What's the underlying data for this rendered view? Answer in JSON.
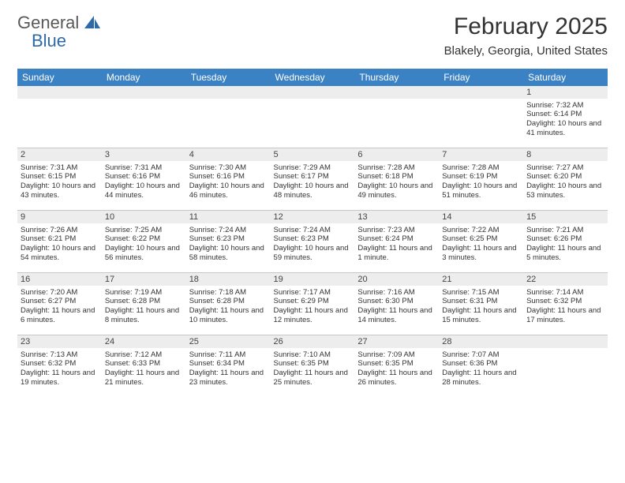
{
  "logo": {
    "word1": "General",
    "word2": "Blue",
    "sail_color": "#2f6aa8"
  },
  "title": "February 2025",
  "location": "Blakely, Georgia, United States",
  "colors": {
    "header_bg": "#3b82c4",
    "header_text": "#ffffff",
    "daynum_bg": "#ededed",
    "border": "#c7c7c7",
    "text": "#333333"
  },
  "day_headers": [
    "Sunday",
    "Monday",
    "Tuesday",
    "Wednesday",
    "Thursday",
    "Friday",
    "Saturday"
  ],
  "weeks": [
    [
      {
        "n": "",
        "sr": "",
        "ss": "",
        "dl": ""
      },
      {
        "n": "",
        "sr": "",
        "ss": "",
        "dl": ""
      },
      {
        "n": "",
        "sr": "",
        "ss": "",
        "dl": ""
      },
      {
        "n": "",
        "sr": "",
        "ss": "",
        "dl": ""
      },
      {
        "n": "",
        "sr": "",
        "ss": "",
        "dl": ""
      },
      {
        "n": "",
        "sr": "",
        "ss": "",
        "dl": ""
      },
      {
        "n": "1",
        "sr": "Sunrise: 7:32 AM",
        "ss": "Sunset: 6:14 PM",
        "dl": "Daylight: 10 hours and 41 minutes."
      }
    ],
    [
      {
        "n": "2",
        "sr": "Sunrise: 7:31 AM",
        "ss": "Sunset: 6:15 PM",
        "dl": "Daylight: 10 hours and 43 minutes."
      },
      {
        "n": "3",
        "sr": "Sunrise: 7:31 AM",
        "ss": "Sunset: 6:16 PM",
        "dl": "Daylight: 10 hours and 44 minutes."
      },
      {
        "n": "4",
        "sr": "Sunrise: 7:30 AM",
        "ss": "Sunset: 6:16 PM",
        "dl": "Daylight: 10 hours and 46 minutes."
      },
      {
        "n": "5",
        "sr": "Sunrise: 7:29 AM",
        "ss": "Sunset: 6:17 PM",
        "dl": "Daylight: 10 hours and 48 minutes."
      },
      {
        "n": "6",
        "sr": "Sunrise: 7:28 AM",
        "ss": "Sunset: 6:18 PM",
        "dl": "Daylight: 10 hours and 49 minutes."
      },
      {
        "n": "7",
        "sr": "Sunrise: 7:28 AM",
        "ss": "Sunset: 6:19 PM",
        "dl": "Daylight: 10 hours and 51 minutes."
      },
      {
        "n": "8",
        "sr": "Sunrise: 7:27 AM",
        "ss": "Sunset: 6:20 PM",
        "dl": "Daylight: 10 hours and 53 minutes."
      }
    ],
    [
      {
        "n": "9",
        "sr": "Sunrise: 7:26 AM",
        "ss": "Sunset: 6:21 PM",
        "dl": "Daylight: 10 hours and 54 minutes."
      },
      {
        "n": "10",
        "sr": "Sunrise: 7:25 AM",
        "ss": "Sunset: 6:22 PM",
        "dl": "Daylight: 10 hours and 56 minutes."
      },
      {
        "n": "11",
        "sr": "Sunrise: 7:24 AM",
        "ss": "Sunset: 6:23 PM",
        "dl": "Daylight: 10 hours and 58 minutes."
      },
      {
        "n": "12",
        "sr": "Sunrise: 7:24 AM",
        "ss": "Sunset: 6:23 PM",
        "dl": "Daylight: 10 hours and 59 minutes."
      },
      {
        "n": "13",
        "sr": "Sunrise: 7:23 AM",
        "ss": "Sunset: 6:24 PM",
        "dl": "Daylight: 11 hours and 1 minute."
      },
      {
        "n": "14",
        "sr": "Sunrise: 7:22 AM",
        "ss": "Sunset: 6:25 PM",
        "dl": "Daylight: 11 hours and 3 minutes."
      },
      {
        "n": "15",
        "sr": "Sunrise: 7:21 AM",
        "ss": "Sunset: 6:26 PM",
        "dl": "Daylight: 11 hours and 5 minutes."
      }
    ],
    [
      {
        "n": "16",
        "sr": "Sunrise: 7:20 AM",
        "ss": "Sunset: 6:27 PM",
        "dl": "Daylight: 11 hours and 6 minutes."
      },
      {
        "n": "17",
        "sr": "Sunrise: 7:19 AM",
        "ss": "Sunset: 6:28 PM",
        "dl": "Daylight: 11 hours and 8 minutes."
      },
      {
        "n": "18",
        "sr": "Sunrise: 7:18 AM",
        "ss": "Sunset: 6:28 PM",
        "dl": "Daylight: 11 hours and 10 minutes."
      },
      {
        "n": "19",
        "sr": "Sunrise: 7:17 AM",
        "ss": "Sunset: 6:29 PM",
        "dl": "Daylight: 11 hours and 12 minutes."
      },
      {
        "n": "20",
        "sr": "Sunrise: 7:16 AM",
        "ss": "Sunset: 6:30 PM",
        "dl": "Daylight: 11 hours and 14 minutes."
      },
      {
        "n": "21",
        "sr": "Sunrise: 7:15 AM",
        "ss": "Sunset: 6:31 PM",
        "dl": "Daylight: 11 hours and 15 minutes."
      },
      {
        "n": "22",
        "sr": "Sunrise: 7:14 AM",
        "ss": "Sunset: 6:32 PM",
        "dl": "Daylight: 11 hours and 17 minutes."
      }
    ],
    [
      {
        "n": "23",
        "sr": "Sunrise: 7:13 AM",
        "ss": "Sunset: 6:32 PM",
        "dl": "Daylight: 11 hours and 19 minutes."
      },
      {
        "n": "24",
        "sr": "Sunrise: 7:12 AM",
        "ss": "Sunset: 6:33 PM",
        "dl": "Daylight: 11 hours and 21 minutes."
      },
      {
        "n": "25",
        "sr": "Sunrise: 7:11 AM",
        "ss": "Sunset: 6:34 PM",
        "dl": "Daylight: 11 hours and 23 minutes."
      },
      {
        "n": "26",
        "sr": "Sunrise: 7:10 AM",
        "ss": "Sunset: 6:35 PM",
        "dl": "Daylight: 11 hours and 25 minutes."
      },
      {
        "n": "27",
        "sr": "Sunrise: 7:09 AM",
        "ss": "Sunset: 6:35 PM",
        "dl": "Daylight: 11 hours and 26 minutes."
      },
      {
        "n": "28",
        "sr": "Sunrise: 7:07 AM",
        "ss": "Sunset: 6:36 PM",
        "dl": "Daylight: 11 hours and 28 minutes."
      },
      {
        "n": "",
        "sr": "",
        "ss": "",
        "dl": ""
      }
    ]
  ]
}
